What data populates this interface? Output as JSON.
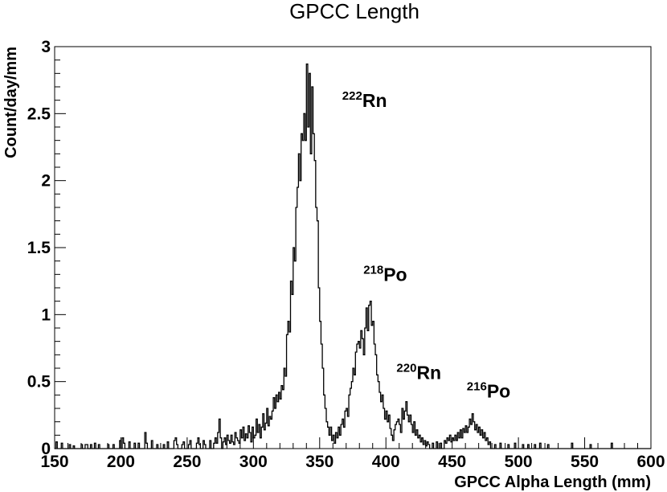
{
  "chart_data": {
    "type": "histogram",
    "title": "GPCC Length",
    "xlabel": "GPCC Alpha Length (mm)",
    "ylabel": "Count/day/mm",
    "xlim": [
      150,
      600
    ],
    "ylim": [
      0,
      3
    ],
    "xticks": [
      "150",
      "200",
      "250",
      "300",
      "350",
      "400",
      "450",
      "500",
      "550",
      "600"
    ],
    "yticks": [
      "0",
      "0.5",
      "1",
      "1.5",
      "2",
      "2.5",
      "3"
    ],
    "grid": false,
    "legend": "none",
    "annotations": [
      {
        "isotope_mass": "222",
        "element": "Rn",
        "x": 367,
        "y": 2.55
      },
      {
        "isotope_mass": "218",
        "element": "Po",
        "x": 383,
        "y": 1.25
      },
      {
        "isotope_mass": "220",
        "element": "Rn",
        "x": 408,
        "y": 0.52
      },
      {
        "isotope_mass": "216",
        "element": "Po",
        "x": 461,
        "y": 0.38
      }
    ],
    "series": [
      {
        "bin_width": 1,
        "points": [
          [
            151,
            0.05
          ],
          [
            152,
            0
          ],
          [
            155,
            0.04
          ],
          [
            156,
            0
          ],
          [
            161,
            0.03
          ],
          [
            162,
            0
          ],
          [
            164,
            0.02
          ],
          [
            165,
            0
          ],
          [
            170,
            0.03
          ],
          [
            171,
            0
          ],
          [
            173,
            0.03
          ],
          [
            174,
            0.03
          ],
          [
            175,
            0
          ],
          [
            177,
            0.03
          ],
          [
            178,
            0
          ],
          [
            180,
            0.04
          ],
          [
            181,
            0
          ],
          [
            183,
            0.03
          ],
          [
            184,
            0
          ],
          [
            190,
            0.03
          ],
          [
            191,
            0
          ],
          [
            194,
            0.03
          ],
          [
            195,
            0
          ],
          [
            199,
            0.06
          ],
          [
            200,
            0
          ],
          [
            201,
            0.08
          ],
          [
            202,
            0.04
          ],
          [
            203,
            0
          ],
          [
            206,
            0.05
          ],
          [
            207,
            0
          ],
          [
            210,
            0.04
          ],
          [
            211,
            0
          ],
          [
            213,
            0.04
          ],
          [
            214,
            0
          ],
          [
            218,
            0.12
          ],
          [
            219,
            0.04
          ],
          [
            220,
            0
          ],
          [
            223,
            0.06
          ],
          [
            224,
            0
          ],
          [
            227,
            0.03
          ],
          [
            228,
            0
          ],
          [
            232,
            0.03
          ],
          [
            233,
            0
          ],
          [
            235,
            0.05
          ],
          [
            236,
            0
          ],
          [
            240,
            0.06
          ],
          [
            241,
            0.08
          ],
          [
            242,
            0.03
          ],
          [
            243,
            0
          ],
          [
            246,
            0.03
          ],
          [
            247,
            0.05
          ],
          [
            248,
            0
          ],
          [
            251,
            0.03
          ],
          [
            252,
            0.06
          ],
          [
            253,
            0
          ],
          [
            257,
            0.04
          ],
          [
            258,
            0.08
          ],
          [
            259,
            0.03
          ],
          [
            260,
            0
          ],
          [
            262,
            0.06
          ],
          [
            263,
            0.03
          ],
          [
            264,
            0
          ],
          [
            267,
            0.06
          ],
          [
            268,
            0
          ],
          [
            270,
            0.04
          ],
          [
            271,
            0.08
          ],
          [
            272,
            0.04
          ],
          [
            273,
            0.12
          ],
          [
            274,
            0.22
          ],
          [
            275,
            0.08
          ],
          [
            276,
            0
          ],
          [
            277,
            0.05
          ],
          [
            278,
            0.08
          ],
          [
            279,
            0.03
          ],
          [
            280,
            0.1
          ],
          [
            281,
            0.06
          ],
          [
            282,
            0.04
          ],
          [
            283,
            0.1
          ],
          [
            284,
            0.05
          ],
          [
            285,
            0.03
          ],
          [
            286,
            0.12
          ],
          [
            287,
            0.08
          ],
          [
            288,
            0.06
          ],
          [
            289,
            0.04
          ],
          [
            290,
            0.14
          ],
          [
            291,
            0.08
          ],
          [
            292,
            0.16
          ],
          [
            293,
            0.06
          ],
          [
            294,
            0.11
          ],
          [
            295,
            0.08
          ],
          [
            296,
            0.17
          ],
          [
            297,
            0.12
          ],
          [
            298,
            0.05
          ],
          [
            299,
            0.16
          ],
          [
            300,
            0.08
          ],
          [
            301,
            0.1
          ],
          [
            302,
            0.22
          ],
          [
            303,
            0.12
          ],
          [
            304,
            0.18
          ],
          [
            305,
            0.08
          ],
          [
            306,
            0.16
          ],
          [
            307,
            0.26
          ],
          [
            308,
            0.14
          ],
          [
            309,
            0.19
          ],
          [
            310,
            0.3
          ],
          [
            311,
            0.17
          ],
          [
            312,
            0.24
          ],
          [
            313,
            0.22
          ],
          [
            314,
            0.28
          ],
          [
            315,
            0.38
          ],
          [
            316,
            0.3
          ],
          [
            317,
            0.4
          ],
          [
            318,
            0.35
          ],
          [
            319,
            0.42
          ],
          [
            320,
            0.37
          ],
          [
            321,
            0.47
          ],
          [
            322,
            0.44
          ],
          [
            323,
            0.6
          ],
          [
            324,
            0.54
          ],
          [
            325,
            0.85
          ],
          [
            326,
            0.95
          ],
          [
            327,
            0.87
          ],
          [
            328,
            1.25
          ],
          [
            329,
            1.15
          ],
          [
            330,
            1.5
          ],
          [
            331,
            1.4
          ],
          [
            332,
            1.8
          ],
          [
            333,
            1.95
          ],
          [
            334,
            2.2
          ],
          [
            335,
            2.0
          ],
          [
            336,
            2.35
          ],
          [
            337,
            2.3
          ],
          [
            338,
            2.5
          ],
          [
            339,
            2.3
          ],
          [
            340,
            2.87
          ],
          [
            341,
            2.4
          ],
          [
            342,
            2.8
          ],
          [
            343,
            2.2
          ],
          [
            344,
            2.7
          ],
          [
            345,
            2.35
          ],
          [
            346,
            2.15
          ],
          [
            347,
            1.8
          ],
          [
            348,
            1.7
          ],
          [
            349,
            1.2
          ],
          [
            350,
            0.95
          ],
          [
            351,
            0.78
          ],
          [
            352,
            0.6
          ],
          [
            353,
            0.4
          ],
          [
            354,
            0.3
          ],
          [
            355,
            0.2
          ],
          [
            356,
            0.16
          ],
          [
            357,
            0.1
          ],
          [
            358,
            0.16
          ],
          [
            359,
            0.06
          ],
          [
            360,
            0.1
          ],
          [
            361,
            0.04
          ],
          [
            362,
            0.12
          ],
          [
            363,
            0.08
          ],
          [
            364,
            0.16
          ],
          [
            365,
            0.1
          ],
          [
            366,
            0.18
          ],
          [
            367,
            0.22
          ],
          [
            368,
            0.16
          ],
          [
            369,
            0.28
          ],
          [
            370,
            0.3
          ],
          [
            371,
            0.24
          ],
          [
            372,
            0.4
          ],
          [
            373,
            0.45
          ],
          [
            374,
            0.5
          ],
          [
            375,
            0.6
          ],
          [
            376,
            0.55
          ],
          [
            377,
            0.72
          ],
          [
            378,
            0.78
          ],
          [
            379,
            0.8
          ],
          [
            380,
            0.75
          ],
          [
            381,
            0.88
          ],
          [
            382,
            0.82
          ],
          [
            383,
            0.7
          ],
          [
            384,
            0.9
          ],
          [
            385,
            1.05
          ],
          [
            386,
            0.88
          ],
          [
            387,
            1.07
          ],
          [
            388,
            1.1
          ],
          [
            389,
            0.92
          ],
          [
            390,
            0.95
          ],
          [
            391,
            0.78
          ],
          [
            392,
            0.7
          ],
          [
            393,
            0.55
          ],
          [
            394,
            0.5
          ],
          [
            395,
            0.42
          ],
          [
            396,
            0.35
          ],
          [
            397,
            0.4
          ],
          [
            398,
            0.3
          ],
          [
            399,
            0.22
          ],
          [
            400,
            0.28
          ],
          [
            401,
            0.2
          ],
          [
            402,
            0.25
          ],
          [
            403,
            0.15
          ],
          [
            404,
            0.1
          ],
          [
            405,
            0.06
          ],
          [
            406,
            0.14
          ],
          [
            407,
            0.18
          ],
          [
            408,
            0.2
          ],
          [
            409,
            0.22
          ],
          [
            410,
            0.18
          ],
          [
            411,
            0.12
          ],
          [
            412,
            0.3
          ],
          [
            413,
            0.22
          ],
          [
            414,
            0.28
          ],
          [
            415,
            0.35
          ],
          [
            416,
            0.25
          ],
          [
            417,
            0.2
          ],
          [
            418,
            0.25
          ],
          [
            419,
            0.18
          ],
          [
            420,
            0.12
          ],
          [
            421,
            0.2
          ],
          [
            422,
            0.1
          ],
          [
            423,
            0.14
          ],
          [
            424,
            0.08
          ],
          [
            425,
            0.1
          ],
          [
            426,
            0.05
          ],
          [
            427,
            0.08
          ],
          [
            428,
            0.03
          ],
          [
            429,
            0.06
          ],
          [
            430,
            0.02
          ],
          [
            431,
            0.05
          ],
          [
            432,
            0.03
          ],
          [
            433,
            0
          ],
          [
            435,
            0.04
          ],
          [
            436,
            0
          ],
          [
            438,
            0.05
          ],
          [
            439,
            0
          ],
          [
            441,
            0.04
          ],
          [
            442,
            0
          ],
          [
            444,
            0.06
          ],
          [
            445,
            0.04
          ],
          [
            446,
            0.08
          ],
          [
            447,
            0.06
          ],
          [
            448,
            0.1
          ],
          [
            449,
            0.05
          ],
          [
            450,
            0.08
          ],
          [
            451,
            0.06
          ],
          [
            452,
            0.1
          ],
          [
            453,
            0.06
          ],
          [
            454,
            0.12
          ],
          [
            455,
            0.08
          ],
          [
            456,
            0.14
          ],
          [
            457,
            0.08
          ],
          [
            458,
            0.15
          ],
          [
            459,
            0.12
          ],
          [
            460,
            0.17
          ],
          [
            461,
            0.12
          ],
          [
            462,
            0.16
          ],
          [
            463,
            0.22
          ],
          [
            464,
            0.18
          ],
          [
            465,
            0.26
          ],
          [
            466,
            0.2
          ],
          [
            467,
            0.14
          ],
          [
            468,
            0.18
          ],
          [
            469,
            0.12
          ],
          [
            470,
            0.16
          ],
          [
            471,
            0.1
          ],
          [
            472,
            0.14
          ],
          [
            473,
            0.08
          ],
          [
            474,
            0.12
          ],
          [
            475,
            0.06
          ],
          [
            476,
            0.08
          ],
          [
            477,
            0.03
          ],
          [
            478,
            0.05
          ],
          [
            479,
            0
          ],
          [
            482,
            0.03
          ],
          [
            483,
            0
          ],
          [
            486,
            0.04
          ],
          [
            487,
            0
          ],
          [
            492,
            0.03
          ],
          [
            493,
            0
          ],
          [
            497,
            0.04
          ],
          [
            498,
            0
          ],
          [
            503,
            0.03
          ],
          [
            504,
            0
          ],
          [
            507,
            0.03
          ],
          [
            508,
            0
          ],
          [
            512,
            0.03
          ],
          [
            513,
            0
          ],
          [
            516,
            0.04
          ],
          [
            517,
            0
          ],
          [
            522,
            0.03
          ],
          [
            523,
            0
          ],
          [
            540,
            0.04
          ],
          [
            541,
            0
          ],
          [
            554,
            0.03
          ],
          [
            555,
            0
          ],
          [
            570,
            0.04
          ],
          [
            571,
            0
          ]
        ]
      }
    ]
  }
}
